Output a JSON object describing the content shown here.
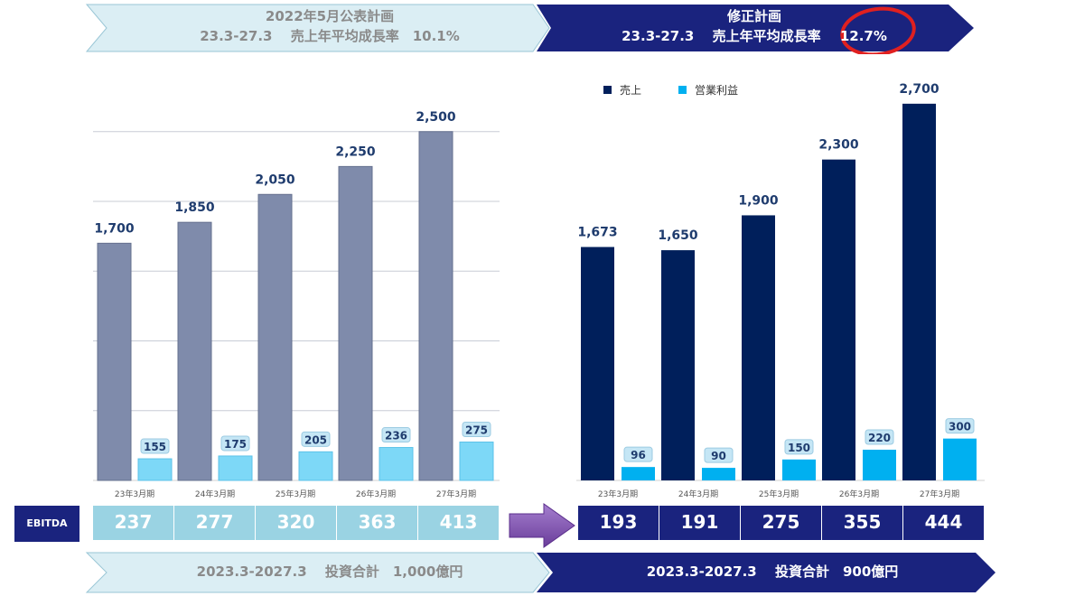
{
  "top_banner": {
    "left": {
      "line1": "2022年5月公表計画",
      "line2": "23.3-27.3　 売上年平均成長率　10.1%"
    },
    "right": {
      "line1": "修正計画",
      "line2_prefix": "23.3-27.3　 売上年平均成長率",
      "line2_value": "12.7%"
    }
  },
  "bottom_banner": {
    "left": "2023.3-2027.3　 投資合計　1,000億円",
    "right": "2023.3-2027.3　 投資合計　900億円"
  },
  "ebitda": {
    "label": "EBITDA",
    "left_values": [
      "237",
      "277",
      "320",
      "363",
      "413"
    ],
    "right_values": [
      "193",
      "191",
      "275",
      "355",
      "444"
    ]
  },
  "colors": {
    "left_sales": "#7f8bab",
    "left_profit": "#7dd8f7",
    "right_sales": "#001f5b",
    "right_profit": "#00b0f0",
    "banner_light": "#dbeef4",
    "banner_dark": "#1a237e",
    "highlight_circle": "#e02020"
  },
  "chart_data": [
    {
      "type": "bar",
      "title": "",
      "categories": [
        "23年3月期",
        "24年3月期",
        "25年3月期",
        "26年3月期",
        "27年3月期"
      ],
      "series": [
        {
          "values": [
            1700,
            1850,
            2050,
            2250,
            2500
          ]
        },
        {
          "values": [
            155,
            175,
            205,
            236,
            275
          ]
        }
      ],
      "data_labels": {
        "sales": [
          "1,700",
          "1,850",
          "2,050",
          "2,250",
          "2,500"
        ],
        "profit": [
          "155",
          "175",
          "205",
          "236",
          "275"
        ]
      },
      "grid": true
    },
    {
      "type": "bar",
      "title": "",
      "categories": [
        "23年3月期",
        "24年3月期",
        "25年3月期",
        "26年3月期",
        "27年3月期"
      ],
      "series": [
        {
          "name": "売上",
          "values": [
            1673,
            1650,
            1900,
            2300,
            2700
          ]
        },
        {
          "name": "営業利益",
          "values": [
            96,
            90,
            150,
            220,
            300
          ]
        }
      ],
      "data_labels": {
        "sales": [
          "1,673",
          "1,650",
          "1,900",
          "2,300",
          "2,700"
        ],
        "profit": [
          "96",
          "90",
          "150",
          "220",
          "300"
        ]
      },
      "legend": "top-left",
      "grid": false
    }
  ]
}
